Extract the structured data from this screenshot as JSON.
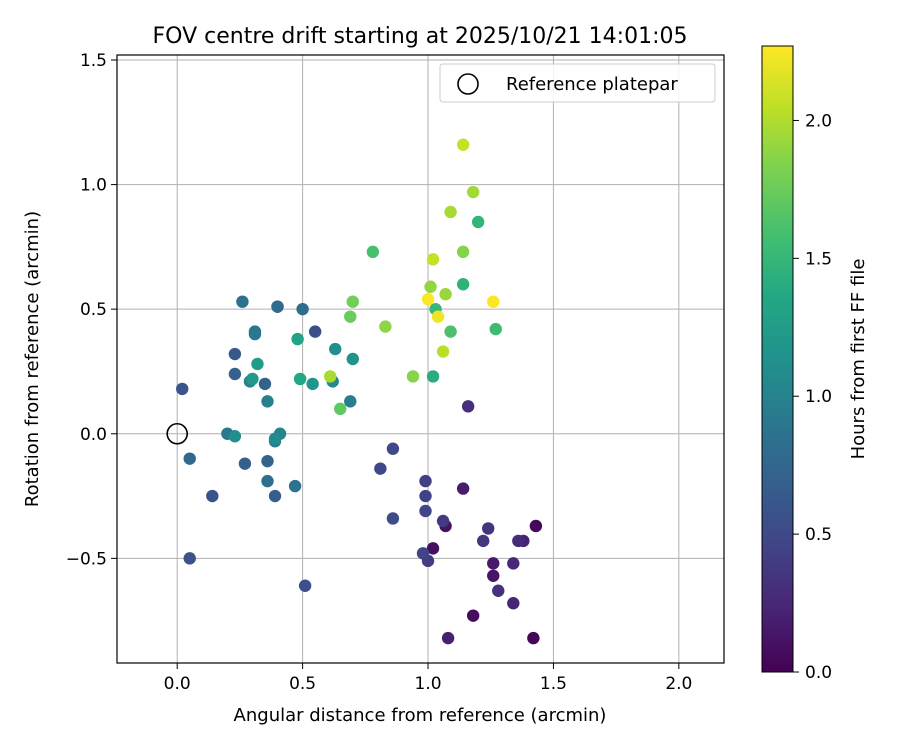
{
  "chart_data": {
    "type": "scatter",
    "title": "FOV centre drift starting at 2025/10/21 14:01:05",
    "xlabel": "Angular distance from reference (arcmin)",
    "ylabel": "Rotation from reference (arcmin)",
    "xlim": [
      -0.24,
      2.18
    ],
    "ylim": [
      -0.92,
      1.52
    ],
    "x_ticks": [
      0.0,
      0.5,
      1.0,
      1.5,
      2.0
    ],
    "x_tick_labels": [
      "0.0",
      "0.5",
      "1.0",
      "1.5",
      "2.0"
    ],
    "y_ticks": [
      -0.5,
      0.0,
      0.5,
      1.0,
      1.5
    ],
    "y_tick_labels": [
      "−0.5",
      "0.0",
      "0.5",
      "1.0",
      "1.5"
    ],
    "grid": true,
    "legend": {
      "placement": "top-right",
      "entries": [
        "Reference platepar"
      ]
    },
    "reference_point": {
      "x": 0.0,
      "y": 0.0
    },
    "colorbar": {
      "label": "Hours from first FF file",
      "min": 0.0,
      "max": 2.27,
      "colormap": "viridis",
      "ticks": [
        0.0,
        0.5,
        1.0,
        1.5,
        2.0
      ],
      "tick_labels": [
        "0.0",
        "0.5",
        "1.0",
        "1.5",
        "2.0"
      ]
    },
    "points": [
      {
        "x": 1.42,
        "y": -0.82,
        "h": 0.02
      },
      {
        "x": 1.43,
        "y": -0.37,
        "h": 0.04
      },
      {
        "x": 1.18,
        "y": -0.73,
        "h": 0.07
      },
      {
        "x": 1.02,
        "y": -0.46,
        "h": 0.09
      },
      {
        "x": 1.07,
        "y": -0.37,
        "h": 0.11
      },
      {
        "x": 1.26,
        "y": -0.57,
        "h": 0.13
      },
      {
        "x": 1.26,
        "y": -0.52,
        "h": 0.16
      },
      {
        "x": 1.14,
        "y": -0.22,
        "h": 0.18
      },
      {
        "x": 1.08,
        "y": -0.82,
        "h": 0.2
      },
      {
        "x": 1.38,
        "y": -0.43,
        "h": 0.22
      },
      {
        "x": 1.34,
        "y": -0.68,
        "h": 0.24
      },
      {
        "x": 1.34,
        "y": -0.52,
        "h": 0.26
      },
      {
        "x": 1.36,
        "y": -0.43,
        "h": 0.28
      },
      {
        "x": 1.16,
        "y": 0.11,
        "h": 0.3
      },
      {
        "x": 1.28,
        "y": -0.63,
        "h": 0.32
      },
      {
        "x": 1.24,
        "y": -0.38,
        "h": 0.34
      },
      {
        "x": 1.22,
        "y": -0.43,
        "h": 0.36
      },
      {
        "x": 1.06,
        "y": -0.35,
        "h": 0.38
      },
      {
        "x": 1.0,
        "y": -0.51,
        "h": 0.4
      },
      {
        "x": 0.99,
        "y": -0.19,
        "h": 0.42
      },
      {
        "x": 0.99,
        "y": -0.25,
        "h": 0.44
      },
      {
        "x": 0.98,
        "y": -0.48,
        "h": 0.46
      },
      {
        "x": 0.99,
        "y": -0.31,
        "h": 0.47
      },
      {
        "x": 0.86,
        "y": -0.06,
        "h": 0.49
      },
      {
        "x": 0.81,
        "y": -0.14,
        "h": 0.5
      },
      {
        "x": 0.86,
        "y": -0.34,
        "h": 0.52
      },
      {
        "x": 0.55,
        "y": 0.41,
        "h": 0.54
      },
      {
        "x": 0.51,
        "y": -0.61,
        "h": 0.55
      },
      {
        "x": 0.05,
        "y": -0.5,
        "h": 0.57
      },
      {
        "x": 0.14,
        "y": -0.25,
        "h": 0.58
      },
      {
        "x": 0.02,
        "y": 0.18,
        "h": 0.6
      },
      {
        "x": 0.23,
        "y": 0.32,
        "h": 0.62
      },
      {
        "x": 0.4,
        "y": 0.51,
        "h": 0.64
      },
      {
        "x": 0.39,
        "y": -0.25,
        "h": 0.66
      },
      {
        "x": 0.27,
        "y": -0.12,
        "h": 0.68
      },
      {
        "x": 0.23,
        "y": 0.24,
        "h": 0.7
      },
      {
        "x": 0.35,
        "y": 0.2,
        "h": 0.72
      },
      {
        "x": 0.36,
        "y": -0.11,
        "h": 0.74
      },
      {
        "x": 0.05,
        "y": -0.1,
        "h": 0.76
      },
      {
        "x": 0.4,
        "y": 0.51,
        "h": 0.78
      },
      {
        "x": 0.5,
        "y": 0.5,
        "h": 0.8
      },
      {
        "x": 0.36,
        "y": -0.19,
        "h": 0.82
      },
      {
        "x": 0.26,
        "y": 0.53,
        "h": 0.84
      },
      {
        "x": 0.47,
        "y": -0.21,
        "h": 0.86
      },
      {
        "x": 0.31,
        "y": 0.41,
        "h": 0.88
      },
      {
        "x": 0.31,
        "y": 0.4,
        "h": 0.9
      },
      {
        "x": 0.2,
        "y": 0.0,
        "h": 0.92
      },
      {
        "x": 0.39,
        "y": -0.03,
        "h": 0.94
      },
      {
        "x": 0.69,
        "y": 0.13,
        "h": 0.96
      },
      {
        "x": 0.36,
        "y": 0.13,
        "h": 0.98
      },
      {
        "x": 0.29,
        "y": 0.21,
        "h": 1.0
      },
      {
        "x": 0.41,
        "y": 0.0,
        "h": 1.02
      },
      {
        "x": 0.62,
        "y": 0.21,
        "h": 1.05
      },
      {
        "x": 0.39,
        "y": -0.02,
        "h": 1.08
      },
      {
        "x": 0.23,
        "y": -0.01,
        "h": 1.1
      },
      {
        "x": 0.63,
        "y": 0.34,
        "h": 1.12
      },
      {
        "x": 0.7,
        "y": 0.3,
        "h": 1.15
      },
      {
        "x": 0.54,
        "y": 0.2,
        "h": 1.18
      },
      {
        "x": 0.3,
        "y": 0.22,
        "h": 1.2
      },
      {
        "x": 0.32,
        "y": 0.28,
        "h": 1.24
      },
      {
        "x": 0.48,
        "y": 0.38,
        "h": 1.3
      },
      {
        "x": 0.49,
        "y": 0.22,
        "h": 1.35
      },
      {
        "x": 1.02,
        "y": 0.23,
        "h": 1.4
      },
      {
        "x": 1.14,
        "y": 0.6,
        "h": 1.45
      },
      {
        "x": 1.2,
        "y": 0.85,
        "h": 1.48
      },
      {
        "x": 1.03,
        "y": 0.5,
        "h": 1.5
      },
      {
        "x": 1.27,
        "y": 0.42,
        "h": 1.55
      },
      {
        "x": 0.78,
        "y": 0.73,
        "h": 1.6
      },
      {
        "x": 1.09,
        "y": 0.41,
        "h": 1.62
      },
      {
        "x": 0.65,
        "y": 0.1,
        "h": 1.7
      },
      {
        "x": 0.69,
        "y": 0.47,
        "h": 1.75
      },
      {
        "x": 0.7,
        "y": 0.53,
        "h": 1.78
      },
      {
        "x": 1.14,
        "y": 0.73,
        "h": 1.85
      },
      {
        "x": 0.94,
        "y": 0.23,
        "h": 1.86
      },
      {
        "x": 0.83,
        "y": 0.43,
        "h": 1.88
      },
      {
        "x": 1.01,
        "y": 0.59,
        "h": 1.9
      },
      {
        "x": 1.07,
        "y": 0.56,
        "h": 1.92
      },
      {
        "x": 1.18,
        "y": 0.97,
        "h": 1.95
      },
      {
        "x": 1.09,
        "y": 0.89,
        "h": 1.97
      },
      {
        "x": 0.61,
        "y": 0.23,
        "h": 1.98
      },
      {
        "x": 1.06,
        "y": 0.33,
        "h": 2.03
      },
      {
        "x": 1.02,
        "y": 0.7,
        "h": 2.07
      },
      {
        "x": 1.14,
        "y": 1.16,
        "h": 2.08
      },
      {
        "x": 1.04,
        "y": 0.47,
        "h": 2.22
      },
      {
        "x": 1.0,
        "y": 0.54,
        "h": 2.26
      },
      {
        "x": 1.26,
        "y": 0.53,
        "h": 2.27
      }
    ]
  }
}
